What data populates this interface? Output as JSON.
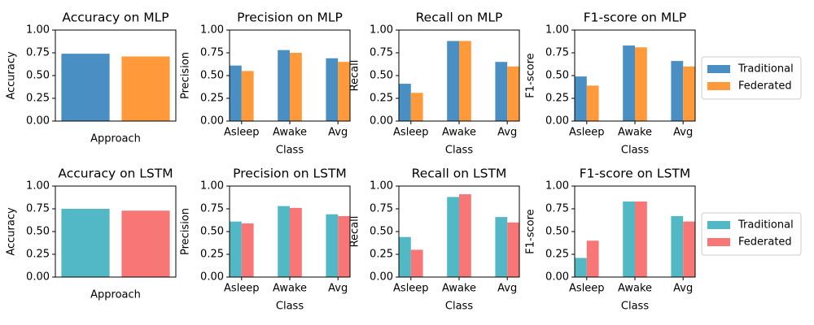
{
  "chart_data": [
    {
      "type": "bar",
      "title": "Accuracy on MLP",
      "xlabel": "Approach",
      "ylabel": "Accuracy",
      "categories": [
        null,
        null
      ],
      "values": [
        0.74,
        0.71
      ],
      "colors": [
        "#4a8fc3",
        "#ff993a"
      ],
      "ylim": [
        0,
        1
      ],
      "yticks": [
        {
          "value": 0,
          "label": "0.00"
        },
        {
          "value": 0.25,
          "label": "0.25"
        },
        {
          "value": 0.5,
          "label": "0.50"
        },
        {
          "value": 0.75,
          "label": "0.75"
        },
        {
          "value": 1,
          "label": "1.00"
        }
      ]
    },
    {
      "type": "grouped_bar",
      "title": "Precision on MLP",
      "xlabel": "Class",
      "ylabel": "Precision",
      "categories": [
        "Asleep",
        "Awake",
        "Avg"
      ],
      "series": [
        {
          "name": "Traditional",
          "color": "#4a8fc3",
          "values": [
            0.61,
            0.78,
            0.69
          ]
        },
        {
          "name": "Federated",
          "color": "#ff993a",
          "values": [
            0.55,
            0.75,
            0.65
          ]
        }
      ],
      "ylim": [
        0,
        1
      ],
      "yticks": [
        {
          "value": 0,
          "label": "0.00"
        },
        {
          "value": 0.25,
          "label": "0.25"
        },
        {
          "value": 0.5,
          "label": "0.50"
        },
        {
          "value": 0.75,
          "label": "0.75"
        },
        {
          "value": 1,
          "label": "1.00"
        }
      ]
    },
    {
      "type": "grouped_bar",
      "title": "Recall on MLP",
      "xlabel": "Class",
      "ylabel": "Recall",
      "categories": [
        "Asleep",
        "Awake",
        "Avg"
      ],
      "series": [
        {
          "name": "Traditional",
          "color": "#4a8fc3",
          "values": [
            0.41,
            0.88,
            0.65
          ]
        },
        {
          "name": "Federated",
          "color": "#ff993a",
          "values": [
            0.31,
            0.88,
            0.6
          ]
        }
      ],
      "ylim": [
        0,
        1
      ],
      "yticks": [
        {
          "value": 0,
          "label": "0.00"
        },
        {
          "value": 0.25,
          "label": "0.25"
        },
        {
          "value": 0.5,
          "label": "0.50"
        },
        {
          "value": 0.75,
          "label": "0.75"
        },
        {
          "value": 1,
          "label": "1.00"
        }
      ]
    },
    {
      "type": "grouped_bar",
      "title": "F1-score on MLP",
      "xlabel": "Class",
      "ylabel": "F1-score",
      "categories": [
        "Asleep",
        "Awake",
        "Avg"
      ],
      "series": [
        {
          "name": "Traditional",
          "color": "#4a8fc3",
          "values": [
            0.49,
            0.83,
            0.66
          ]
        },
        {
          "name": "Federated",
          "color": "#ff993a",
          "values": [
            0.39,
            0.81,
            0.6
          ]
        }
      ],
      "ylim": [
        0,
        1
      ],
      "yticks": [
        {
          "value": 0,
          "label": "0.00"
        },
        {
          "value": 0.25,
          "label": "0.25"
        },
        {
          "value": 0.5,
          "label": "0.50"
        },
        {
          "value": 0.75,
          "label": "0.75"
        },
        {
          "value": 1,
          "label": "1.00"
        }
      ],
      "legend": "outside right"
    },
    {
      "type": "bar",
      "title": "Accuracy on LSTM",
      "xlabel": "Approach",
      "ylabel": "Accuracy",
      "categories": [
        null,
        null
      ],
      "values": [
        0.75,
        0.73
      ],
      "colors": [
        "#52b8c6",
        "#f97676"
      ],
      "ylim": [
        0,
        1
      ],
      "yticks": [
        {
          "value": 0,
          "label": "0.00"
        },
        {
          "value": 0.25,
          "label": "0.25"
        },
        {
          "value": 0.5,
          "label": "0.50"
        },
        {
          "value": 0.75,
          "label": "0.75"
        },
        {
          "value": 1,
          "label": "1.00"
        }
      ]
    },
    {
      "type": "grouped_bar",
      "title": "Precision on LSTM",
      "xlabel": "Class",
      "ylabel": "Precision",
      "categories": [
        "Asleep",
        "Awake",
        "Avg"
      ],
      "series": [
        {
          "name": "Traditional",
          "color": "#52b8c6",
          "values": [
            0.61,
            0.78,
            0.69
          ]
        },
        {
          "name": "Federated",
          "color": "#f97676",
          "values": [
            0.59,
            0.76,
            0.67
          ]
        }
      ],
      "ylim": [
        0,
        1
      ],
      "yticks": [
        {
          "value": 0,
          "label": "0.00"
        },
        {
          "value": 0.25,
          "label": "0.25"
        },
        {
          "value": 0.5,
          "label": "0.50"
        },
        {
          "value": 0.75,
          "label": "0.75"
        },
        {
          "value": 1,
          "label": "1.00"
        }
      ]
    },
    {
      "type": "grouped_bar",
      "title": "Recall on LSTM",
      "xlabel": "Class",
      "ylabel": "Recall",
      "categories": [
        "Asleep",
        "Awake",
        "Avg"
      ],
      "series": [
        {
          "name": "Traditional",
          "color": "#52b8c6",
          "values": [
            0.44,
            0.88,
            0.66
          ]
        },
        {
          "name": "Federated",
          "color": "#f97676",
          "values": [
            0.3,
            0.91,
            0.6
          ]
        }
      ],
      "ylim": [
        0,
        1
      ],
      "yticks": [
        {
          "value": 0,
          "label": "0.00"
        },
        {
          "value": 0.25,
          "label": "0.25"
        },
        {
          "value": 0.5,
          "label": "0.50"
        },
        {
          "value": 0.75,
          "label": "0.75"
        },
        {
          "value": 1,
          "label": "1.00"
        }
      ]
    },
    {
      "type": "grouped_bar",
      "title": "F1-score on LSTM",
      "xlabel": "Class",
      "ylabel": "F1-score",
      "categories": [
        "Asleep",
        "Awake",
        "Avg"
      ],
      "series": [
        {
          "name": "Traditional",
          "color": "#52b8c6",
          "values": [
            0.21,
            0.83,
            0.67
          ]
        },
        {
          "name": "Federated",
          "color": "#f97676",
          "values": [
            0.4,
            0.83,
            0.61
          ]
        }
      ],
      "ylim": [
        0,
        1
      ],
      "yticks": [
        {
          "value": 0,
          "label": "0.00"
        },
        {
          "value": 0.25,
          "label": "0.25"
        },
        {
          "value": 0.5,
          "label": "0.50"
        },
        {
          "value": 0.75,
          "label": "0.75"
        },
        {
          "value": 1,
          "label": "1.00"
        }
      ],
      "legend": "outside right"
    }
  ]
}
